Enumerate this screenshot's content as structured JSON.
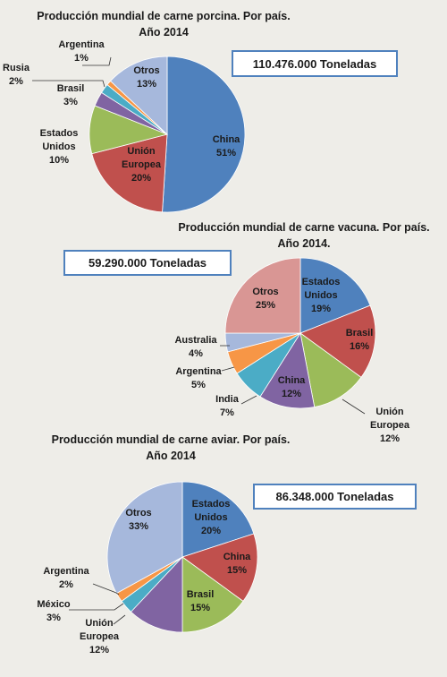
{
  "chart_data": [
    {
      "type": "pie",
      "title": [
        "Producción mundial de carne porcina. Por país.",
        "Año 2014"
      ],
      "total": "110.476.000 Toneladas",
      "slices": [
        {
          "label": [
            "China",
            "51%"
          ],
          "value": 51,
          "color": "#4f81bd"
        },
        {
          "label": [
            "Unión",
            "Europea",
            "20%"
          ],
          "value": 20,
          "color": "#c0504d"
        },
        {
          "label": [
            "Estados",
            "Unidos",
            "10%"
          ],
          "value": 10,
          "color": "#9bbb59"
        },
        {
          "label": [
            "Brasil",
            "3%"
          ],
          "value": 3,
          "color": "#8064a2"
        },
        {
          "label": [
            "Rusia",
            "2%"
          ],
          "value": 2,
          "color": "#4bacc6"
        },
        {
          "label": [
            "Argentina",
            "1%"
          ],
          "value": 1,
          "color": "#f79646"
        },
        {
          "label": [
            "Otros",
            "13%"
          ],
          "value": 13,
          "color": "#a6b8dc"
        }
      ]
    },
    {
      "type": "pie",
      "title": [
        "Producción mundial de carne vacuna. Por país.",
        "Año 2014."
      ],
      "total": "59.290.000 Toneladas",
      "slices": [
        {
          "label": [
            "Estados",
            "Unidos",
            "19%"
          ],
          "value": 19,
          "color": "#4f81bd"
        },
        {
          "label": [
            "Brasil",
            "16%"
          ],
          "value": 16,
          "color": "#c0504d"
        },
        {
          "label": [
            "Unión",
            "Europea",
            "12%"
          ],
          "value": 12,
          "color": "#9bbb59"
        },
        {
          "label": [
            "China",
            "12%"
          ],
          "value": 12,
          "color": "#8064a2"
        },
        {
          "label": [
            "India",
            "7%"
          ],
          "value": 7,
          "color": "#4bacc6"
        },
        {
          "label": [
            "Argentina",
            "5%"
          ],
          "value": 5,
          "color": "#f79646"
        },
        {
          "label": [
            "Australia",
            "4%"
          ],
          "value": 4,
          "color": "#a6b8dc"
        },
        {
          "label": [
            "Otros",
            "25%"
          ],
          "value": 25,
          "color": "#d99694"
        }
      ]
    },
    {
      "type": "pie",
      "title": [
        "Producción mundial de carne aviar. Por país.",
        "Año 2014"
      ],
      "total": "86.348.000 Toneladas",
      "slices": [
        {
          "label": [
            "Estados",
            "Unidos",
            "20%"
          ],
          "value": 20,
          "color": "#4f81bd"
        },
        {
          "label": [
            "China",
            "15%"
          ],
          "value": 15,
          "color": "#c0504d"
        },
        {
          "label": [
            "Brasil",
            "15%"
          ],
          "value": 15,
          "color": "#9bbb59"
        },
        {
          "label": [
            "Unión",
            "Europea",
            "12%"
          ],
          "value": 12,
          "color": "#8064a2"
        },
        {
          "label": [
            "México",
            "3%"
          ],
          "value": 3,
          "color": "#4bacc6"
        },
        {
          "label": [
            "Argentina",
            "2%"
          ],
          "value": 2,
          "color": "#f79646"
        },
        {
          "label": [
            "Otros",
            "33%"
          ],
          "value": 33,
          "color": "#a6b8dc"
        }
      ]
    }
  ]
}
